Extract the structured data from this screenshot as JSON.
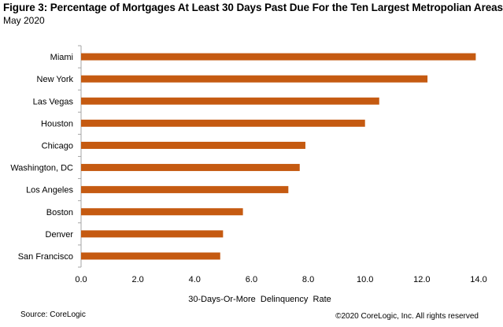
{
  "header": {
    "title": "Figure 3: Percentage of Mortgages At Least 30 Days Past Due For the Ten Largest Metropolian Areas",
    "subtitle": "May 2020"
  },
  "footer": {
    "source": "Source: CoreLogic",
    "copyright": "©2020 CoreLogic, Inc. All rights reserved"
  },
  "colors": {
    "bar": "#C55A11",
    "axis": "#a6a6a6"
  },
  "chart_data": {
    "type": "bar",
    "orientation": "horizontal",
    "title": "Figure 3: Percentage of Mortgages At Least 30 Days Past Due For the Ten Largest Metropolian Areas",
    "subtitle": "May 2020",
    "xlabel": "30-Days-Or-More  Delinquency  Rate",
    "ylabel": "",
    "categories": [
      "Miami",
      "New York",
      "Las Vegas",
      "Houston",
      "Chicago",
      "Washington, DC",
      "Los Angeles",
      "Boston",
      "Denver",
      "San Francisco"
    ],
    "values": [
      13.9,
      12.2,
      10.5,
      10.0,
      7.9,
      7.7,
      7.3,
      5.7,
      5.0,
      4.9
    ],
    "xlim": [
      0,
      14
    ],
    "xticks": [
      "0.0",
      "2.0",
      "4.0",
      "6.0",
      "8.0",
      "10.0",
      "12.0",
      "14.0"
    ],
    "grid": false,
    "legend": "none"
  }
}
